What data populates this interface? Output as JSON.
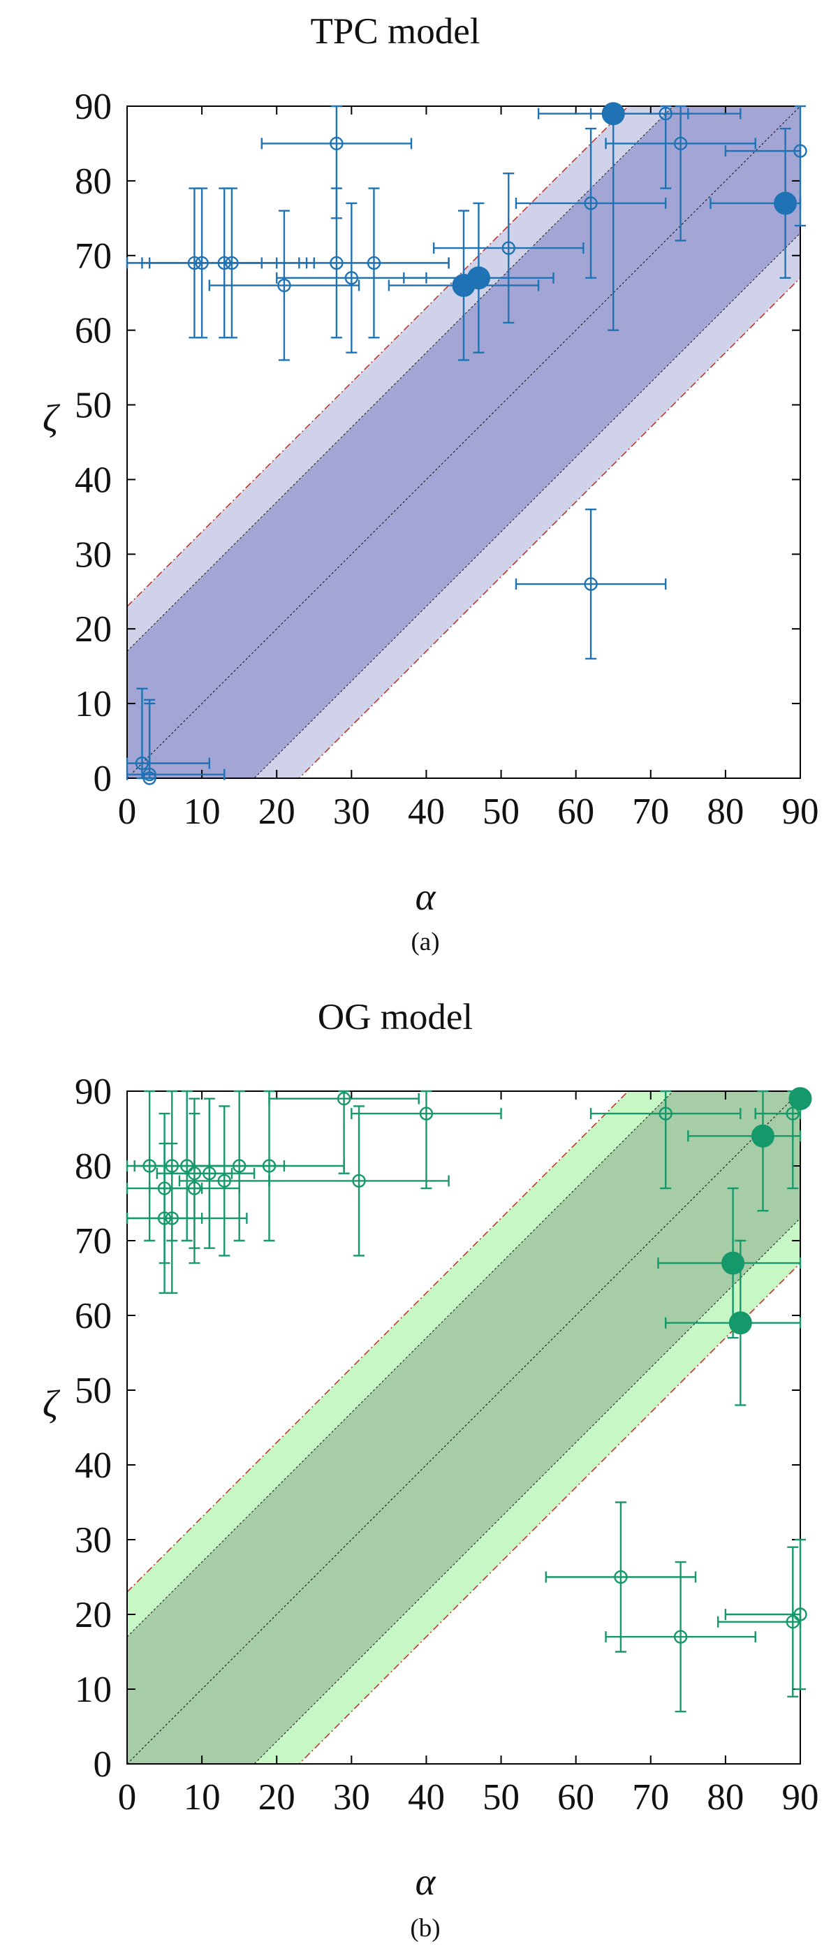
{
  "chart_data": [
    {
      "type": "scatter",
      "title": "TPC model",
      "caption": "(a)",
      "xlabel": "α",
      "ylabel": "ζ",
      "xlim": [
        0,
        90
      ],
      "ylim": [
        0,
        90
      ],
      "xticks": [
        0,
        10,
        20,
        30,
        40,
        50,
        60,
        70,
        80,
        90
      ],
      "yticks": [
        0,
        10,
        20,
        30,
        40,
        50,
        60,
        70,
        80,
        90
      ],
      "bands": {
        "inner_halfwidth": 17,
        "outer_halfwidth": 23
      },
      "colors": {
        "marker": "#1f72b4",
        "inner_band": "#a3a6d4",
        "outer_band": "#d0d2ea",
        "boundary": "#c0392b"
      },
      "open_points": [
        {
          "x": 2,
          "y": 2,
          "xerr": 9,
          "yerr": 10
        },
        {
          "x": 3,
          "y": 0.5,
          "xerr": 10,
          "yerr": 10
        },
        {
          "x": 3,
          "y": 0,
          "xerr": 0,
          "yerr": 10
        },
        {
          "x": 9,
          "y": 69,
          "xerr": 9,
          "yerr": 10
        },
        {
          "x": 10,
          "y": 69,
          "xerr": 10,
          "yerr": 10
        },
        {
          "x": 13,
          "y": 69,
          "xerr": 11,
          "yerr": 10
        },
        {
          "x": 14,
          "y": 69,
          "xerr": 11,
          "yerr": 10
        },
        {
          "x": 21,
          "y": 66,
          "xerr": 10,
          "yerr": 10
        },
        {
          "x": 28,
          "y": 85,
          "xerr": 10,
          "yerr": 10
        },
        {
          "x": 28,
          "y": 69,
          "xerr": 15,
          "yerr": 10
        },
        {
          "x": 30,
          "y": 67,
          "xerr": 10,
          "yerr": 10
        },
        {
          "x": 33,
          "y": 69,
          "xerr": 10,
          "yerr": 10
        },
        {
          "x": 51,
          "y": 71,
          "xerr": 10,
          "yerr": 10
        },
        {
          "x": 62,
          "y": 77,
          "xerr": 10,
          "yerr": 10
        },
        {
          "x": 62,
          "y": 26,
          "xerr": 10,
          "yerr": 10
        },
        {
          "x": 72,
          "y": 89,
          "xerr": 10,
          "yerr": 10
        },
        {
          "x": 74,
          "y": 85,
          "xerr": 10,
          "yerr": 13
        },
        {
          "x": 90,
          "y": 84,
          "xerr": 10,
          "yerr": 10
        }
      ],
      "filled_points": [
        {
          "x": 45,
          "y": 66,
          "xerr": 10,
          "yerr": 10
        },
        {
          "x": 47,
          "y": 67,
          "xerr": 10,
          "yerr": 10
        },
        {
          "x": 65,
          "y": 89,
          "xerr": 10,
          "yerr": 29
        },
        {
          "x": 88,
          "y": 77,
          "xerr": 10,
          "yerr": 10
        }
      ]
    },
    {
      "type": "scatter",
      "title": "OG model",
      "caption": "(b)",
      "xlabel": "α",
      "ylabel": "ζ",
      "xlim": [
        0,
        90
      ],
      "ylim": [
        0,
        90
      ],
      "xticks": [
        0,
        10,
        20,
        30,
        40,
        50,
        60,
        70,
        80,
        90
      ],
      "yticks": [
        0,
        10,
        20,
        30,
        40,
        50,
        60,
        70,
        80,
        90
      ],
      "bands": {
        "inner_halfwidth": 17,
        "outer_halfwidth": 23
      },
      "colors": {
        "marker": "#16996a",
        "inner_band": "#a6cda5",
        "outer_band": "#c6f7c5",
        "boundary": "#c0392b"
      },
      "open_points": [
        {
          "x": 3,
          "y": 80,
          "xerr": 3,
          "yerr": 10
        },
        {
          "x": 5,
          "y": 77,
          "xerr": 5,
          "yerr": 10
        },
        {
          "x": 5,
          "y": 73,
          "xerr": 5,
          "yerr": 10
        },
        {
          "x": 6,
          "y": 80,
          "xerr": 5,
          "yerr": 10
        },
        {
          "x": 6,
          "y": 73,
          "xerr": 10,
          "yerr": 10
        },
        {
          "x": 8,
          "y": 80,
          "xerr": 5,
          "yerr": 10
        },
        {
          "x": 9,
          "y": 79,
          "xerr": 5,
          "yerr": 10
        },
        {
          "x": 9,
          "y": 77,
          "xerr": 6,
          "yerr": 10
        },
        {
          "x": 11,
          "y": 79,
          "xerr": 6,
          "yerr": 10
        },
        {
          "x": 13,
          "y": 78,
          "xerr": 6,
          "yerr": 10
        },
        {
          "x": 15,
          "y": 80,
          "xerr": 6,
          "yerr": 10
        },
        {
          "x": 19,
          "y": 80,
          "xerr": 10,
          "yerr": 10
        },
        {
          "x": 29,
          "y": 89,
          "xerr": 10,
          "yerr": 10
        },
        {
          "x": 31,
          "y": 78,
          "xerr": 12,
          "yerr": 10
        },
        {
          "x": 40,
          "y": 87,
          "xerr": 10,
          "yerr": 10
        },
        {
          "x": 66,
          "y": 25,
          "xerr": 10,
          "yerr": 10
        },
        {
          "x": 72,
          "y": 87,
          "xerr": 10,
          "yerr": 10
        },
        {
          "x": 74,
          "y": 17,
          "xerr": 10,
          "yerr": 10
        },
        {
          "x": 89,
          "y": 87,
          "xerr": 5,
          "yerr": 10
        },
        {
          "x": 89,
          "y": 19,
          "xerr": 10,
          "yerr": 10
        },
        {
          "x": 90,
          "y": 20,
          "xerr": 10,
          "yerr": 10
        }
      ],
      "filled_points": [
        {
          "x": 81,
          "y": 67,
          "xerr": 10,
          "yerr": 10
        },
        {
          "x": 82,
          "y": 59,
          "xerr": 10,
          "yerr": 11
        },
        {
          "x": 85,
          "y": 84,
          "xerr": 10,
          "yerr": 10
        },
        {
          "x": 90,
          "y": 89,
          "xerr": 0,
          "yerr": 0
        }
      ]
    }
  ]
}
